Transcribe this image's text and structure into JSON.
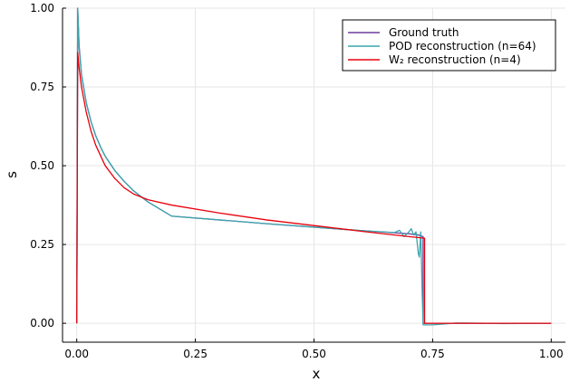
{
  "chart_data": {
    "type": "line",
    "xlabel": "x",
    "ylabel": "s",
    "xlim": [
      -0.03,
      1.03
    ],
    "ylim": [
      -0.06,
      1.0
    ],
    "xticks": [
      0.0,
      0.25,
      0.5,
      0.75,
      1.0
    ],
    "xtick_labels": [
      "0.00",
      "0.25",
      "0.50",
      "0.75",
      "1.00"
    ],
    "yticks": [
      0.0,
      0.25,
      0.5,
      0.75,
      1.0
    ],
    "ytick_labels": [
      "0.00",
      "0.25",
      "0.50",
      "0.75",
      "1.00"
    ],
    "grid": true,
    "legend_position": "top-right",
    "series": [
      {
        "name": "Ground truth",
        "color": "#6a3d9a",
        "x": [
          0.0,
          0.002,
          0.005,
          0.01,
          0.02,
          0.03,
          0.04,
          0.05,
          0.06,
          0.08,
          0.1,
          0.12,
          0.15,
          0.2,
          0.3,
          0.4,
          0.5,
          0.6,
          0.7,
          0.72,
          0.73,
          0.73,
          0.74,
          0.8,
          0.9,
          1.0
        ],
        "y": [
          0.0,
          1.0,
          0.88,
          0.79,
          0.7,
          0.64,
          0.595,
          0.56,
          0.53,
          0.485,
          0.45,
          0.42,
          0.385,
          0.34,
          0.328,
          0.316,
          0.305,
          0.294,
          0.284,
          0.28,
          0.275,
          0.0,
          0.0,
          0.0,
          0.0,
          0.0
        ]
      },
      {
        "name": "POD reconstruction (n=64)",
        "color": "#3aa6ac",
        "x": [
          0.0,
          0.002,
          0.005,
          0.01,
          0.02,
          0.03,
          0.04,
          0.05,
          0.06,
          0.08,
          0.1,
          0.12,
          0.15,
          0.2,
          0.3,
          0.4,
          0.5,
          0.6,
          0.67,
          0.68,
          0.69,
          0.7,
          0.705,
          0.71,
          0.715,
          0.72,
          0.722,
          0.725,
          0.728,
          0.73,
          0.735,
          0.75,
          0.77,
          0.8,
          0.9,
          1.0
        ],
        "y": [
          0.0,
          1.0,
          0.87,
          0.79,
          0.7,
          0.64,
          0.595,
          0.56,
          0.53,
          0.485,
          0.45,
          0.42,
          0.385,
          0.34,
          0.328,
          0.316,
          0.305,
          0.294,
          0.288,
          0.295,
          0.275,
          0.29,
          0.3,
          0.28,
          0.29,
          0.22,
          0.21,
          0.29,
          0.1,
          -0.005,
          -0.005,
          -0.005,
          -0.003,
          0.001,
          -0.001,
          0.0
        ]
      },
      {
        "name": "W₂ reconstruction (n=4)",
        "color": "#e8000b",
        "x": [
          0.0,
          0.002,
          0.005,
          0.01,
          0.02,
          0.03,
          0.04,
          0.06,
          0.08,
          0.1,
          0.12,
          0.15,
          0.2,
          0.3,
          0.4,
          0.5,
          0.6,
          0.7,
          0.733,
          0.733,
          0.75,
          0.8,
          0.9,
          1.0
        ],
        "y": [
          0.0,
          0.86,
          0.81,
          0.75,
          0.67,
          0.61,
          0.565,
          0.5,
          0.46,
          0.43,
          0.41,
          0.392,
          0.375,
          0.35,
          0.328,
          0.31,
          0.292,
          0.275,
          0.27,
          0.0,
          0.0,
          0.0,
          0.0,
          0.0
        ]
      }
    ]
  }
}
